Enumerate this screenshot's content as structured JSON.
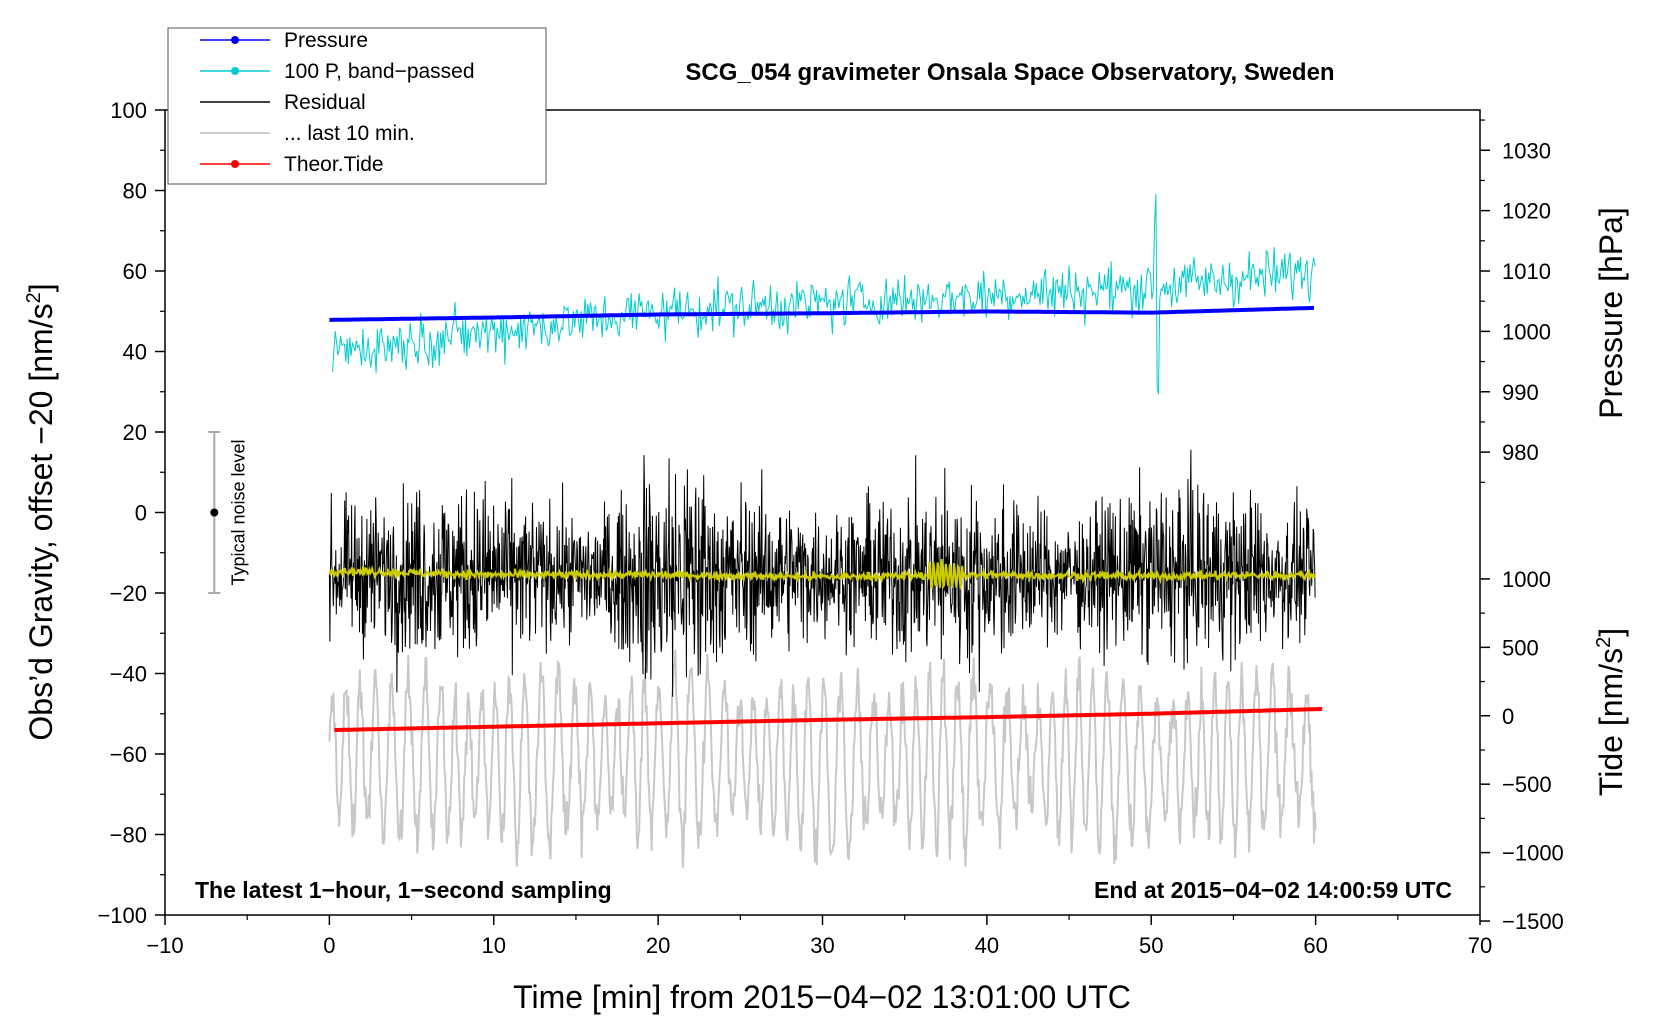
{
  "chart_data": {
    "type": "line",
    "title": "SCG_054 gravimeter Onsala Space Observatory, Sweden",
    "xlabel": "Time [min] from 2015−04−02 13:01:00 UTC",
    "ylabel_left_main": "Obs’d Gravity, offset −20 [nm/s",
    "ylabel_left_sup": "2",
    "ylabel_left_tail": "]",
    "ylabel_pressure": "Pressure [hPa]",
    "ylabel_tide_main": "Tide [nm/s",
    "ylabel_tide_sup": "2",
    "ylabel_tide_tail": "]",
    "xlim": [
      -10,
      70
    ],
    "ylim": [
      -100,
      100
    ],
    "x_ticks": [
      -10,
      0,
      10,
      20,
      30,
      40,
      50,
      60,
      70
    ],
    "x_tick_labels": [
      "−10",
      "0",
      "10",
      "20",
      "30",
      "40",
      "50",
      "60",
      "70"
    ],
    "y_ticks": [
      -100,
      -80,
      -60,
      -40,
      -20,
      0,
      20,
      40,
      60,
      80,
      100
    ],
    "y_tick_labels": [
      "−100",
      "−80",
      "−60",
      "−40",
      "−20",
      "0",
      "20",
      "40",
      "60",
      "80",
      "100"
    ],
    "pressure_axis": {
      "ticks": [
        980,
        990,
        1000,
        1010,
        1020,
        1030
      ],
      "tick_labels": [
        "980",
        "990",
        "1000",
        "1010",
        "1020",
        "1030"
      ],
      "gravity_at_980": 15,
      "gravity_per_hpa": 1.5
    },
    "tide_axis": {
      "ticks": [
        -1500,
        -1000,
        -500,
        0,
        500,
        1000
      ],
      "tick_labels": [
        "−1500",
        "−1000",
        "−500",
        "0",
        "500",
        "1000"
      ],
      "gravity_at_0": -50.5,
      "gravity_per_unit": 0.034
    },
    "legend": {
      "position": "top-left",
      "entries": [
        {
          "label": "Pressure",
          "color": "#0000ff",
          "marker": true
        },
        {
          "label": "100 P, band−passed",
          "color": "#00cccc",
          "marker": true
        },
        {
          "label": "Residual",
          "color": "#000000",
          "marker": false
        },
        {
          "label": "... last 10 min.",
          "color": "#bbbbbb",
          "marker": false
        },
        {
          "label": "Theor.Tide",
          "color": "#ff0000",
          "marker": true
        }
      ]
    },
    "noise_bar": {
      "x": -7,
      "center": 0,
      "low": -20,
      "high": 20,
      "label": "Typical noise level"
    },
    "annotations": {
      "left": "The latest 1−hour, 1−second sampling",
      "right": "End at 2015−04−02 14:00:59 UTC"
    },
    "series": [
      {
        "name": "Pressure",
        "color": "#0000ff",
        "unit": "hPa",
        "x": [
          0,
          10,
          20,
          30,
          40,
          50,
          60
        ],
        "values": [
          1001.9,
          1002.3,
          1002.8,
          1003.0,
          1003.3,
          1003.1,
          1003.9
        ]
      },
      {
        "name": "100 P, band-passed",
        "color": "#00cccc",
        "unit": "nm/s2",
        "x": [
          0,
          10,
          20,
          30,
          40,
          50,
          60
        ],
        "values": [
          40,
          45,
          50,
          52,
          54,
          56,
          60
        ]
      },
      {
        "name": "Residual",
        "color": "#000000",
        "unit": "nm/s2",
        "x": [
          0,
          10,
          20,
          30,
          40,
          50,
          60
        ],
        "values": [
          -15,
          -15,
          -16,
          -15,
          -16,
          -15,
          -15
        ]
      },
      {
        "name": "... last 10 min.",
        "color": "#c8c8c8",
        "unit": "nm/s2",
        "x": [
          0,
          10,
          20,
          30,
          40,
          50,
          60
        ],
        "values": [
          -60,
          -62,
          -60,
          -63,
          -60,
          -62,
          -60
        ]
      },
      {
        "name": "Residual smoothed",
        "color": "#cccc00",
        "unit": "nm/s2",
        "x": [
          0,
          10,
          20,
          30,
          40,
          50,
          60
        ],
        "values": [
          -14.5,
          -15.5,
          -15.5,
          -16,
          -15.5,
          -15.8,
          -15.5
        ]
      },
      {
        "name": "Theor.Tide",
        "color": "#ff0000",
        "unit": "nm/s2",
        "x": [
          0,
          10,
          20,
          30,
          40,
          50,
          60.5
        ],
        "values": [
          -105,
          -80,
          -55,
          -30,
          -10,
          15,
          50
        ]
      }
    ]
  }
}
